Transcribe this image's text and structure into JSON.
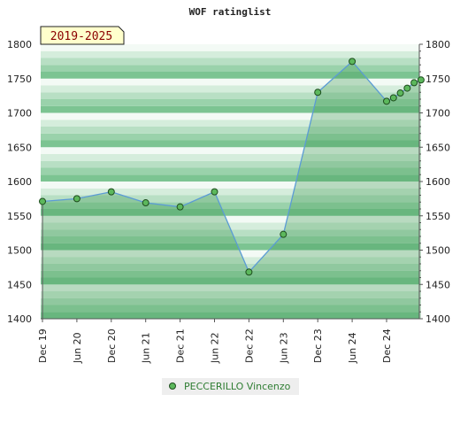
{
  "chart_data": {
    "type": "area",
    "title": "WOF ratinglist",
    "period_badge": "2019-2025",
    "ylim": [
      1400,
      1800
    ],
    "y_ticks": [
      1400,
      1450,
      1500,
      1550,
      1600,
      1650,
      1700,
      1750,
      1800
    ],
    "x_ticks": [
      "Dec 19",
      "Jun 20",
      "Dec 20",
      "Jun 21",
      "Dec 21",
      "Jun 22",
      "Dec 22",
      "Jun 23",
      "Dec 23",
      "Jun 24",
      "Dec 24"
    ],
    "series": [
      {
        "name": "PECCERILLO Vincenzo",
        "x": [
          0,
          1,
          2,
          3,
          4,
          5,
          6,
          7,
          8,
          9,
          10,
          10.2,
          10.4,
          10.6,
          10.8,
          11.0
        ],
        "values": [
          1571,
          1575,
          1585,
          1569,
          1563,
          1585,
          1468,
          1523,
          1730,
          1775,
          1717,
          1722,
          1729,
          1736,
          1744,
          1748
        ]
      }
    ],
    "colors": {
      "line": "#5b9bd5",
      "marker_fill": "#5cb85c",
      "marker_stroke": "#1e4d1e",
      "band_dark": "#7cc492",
      "band_light": "#f3faf5",
      "badge_fill": "#ffffcc"
    },
    "grid": true,
    "legend_position": "bottom-center"
  }
}
